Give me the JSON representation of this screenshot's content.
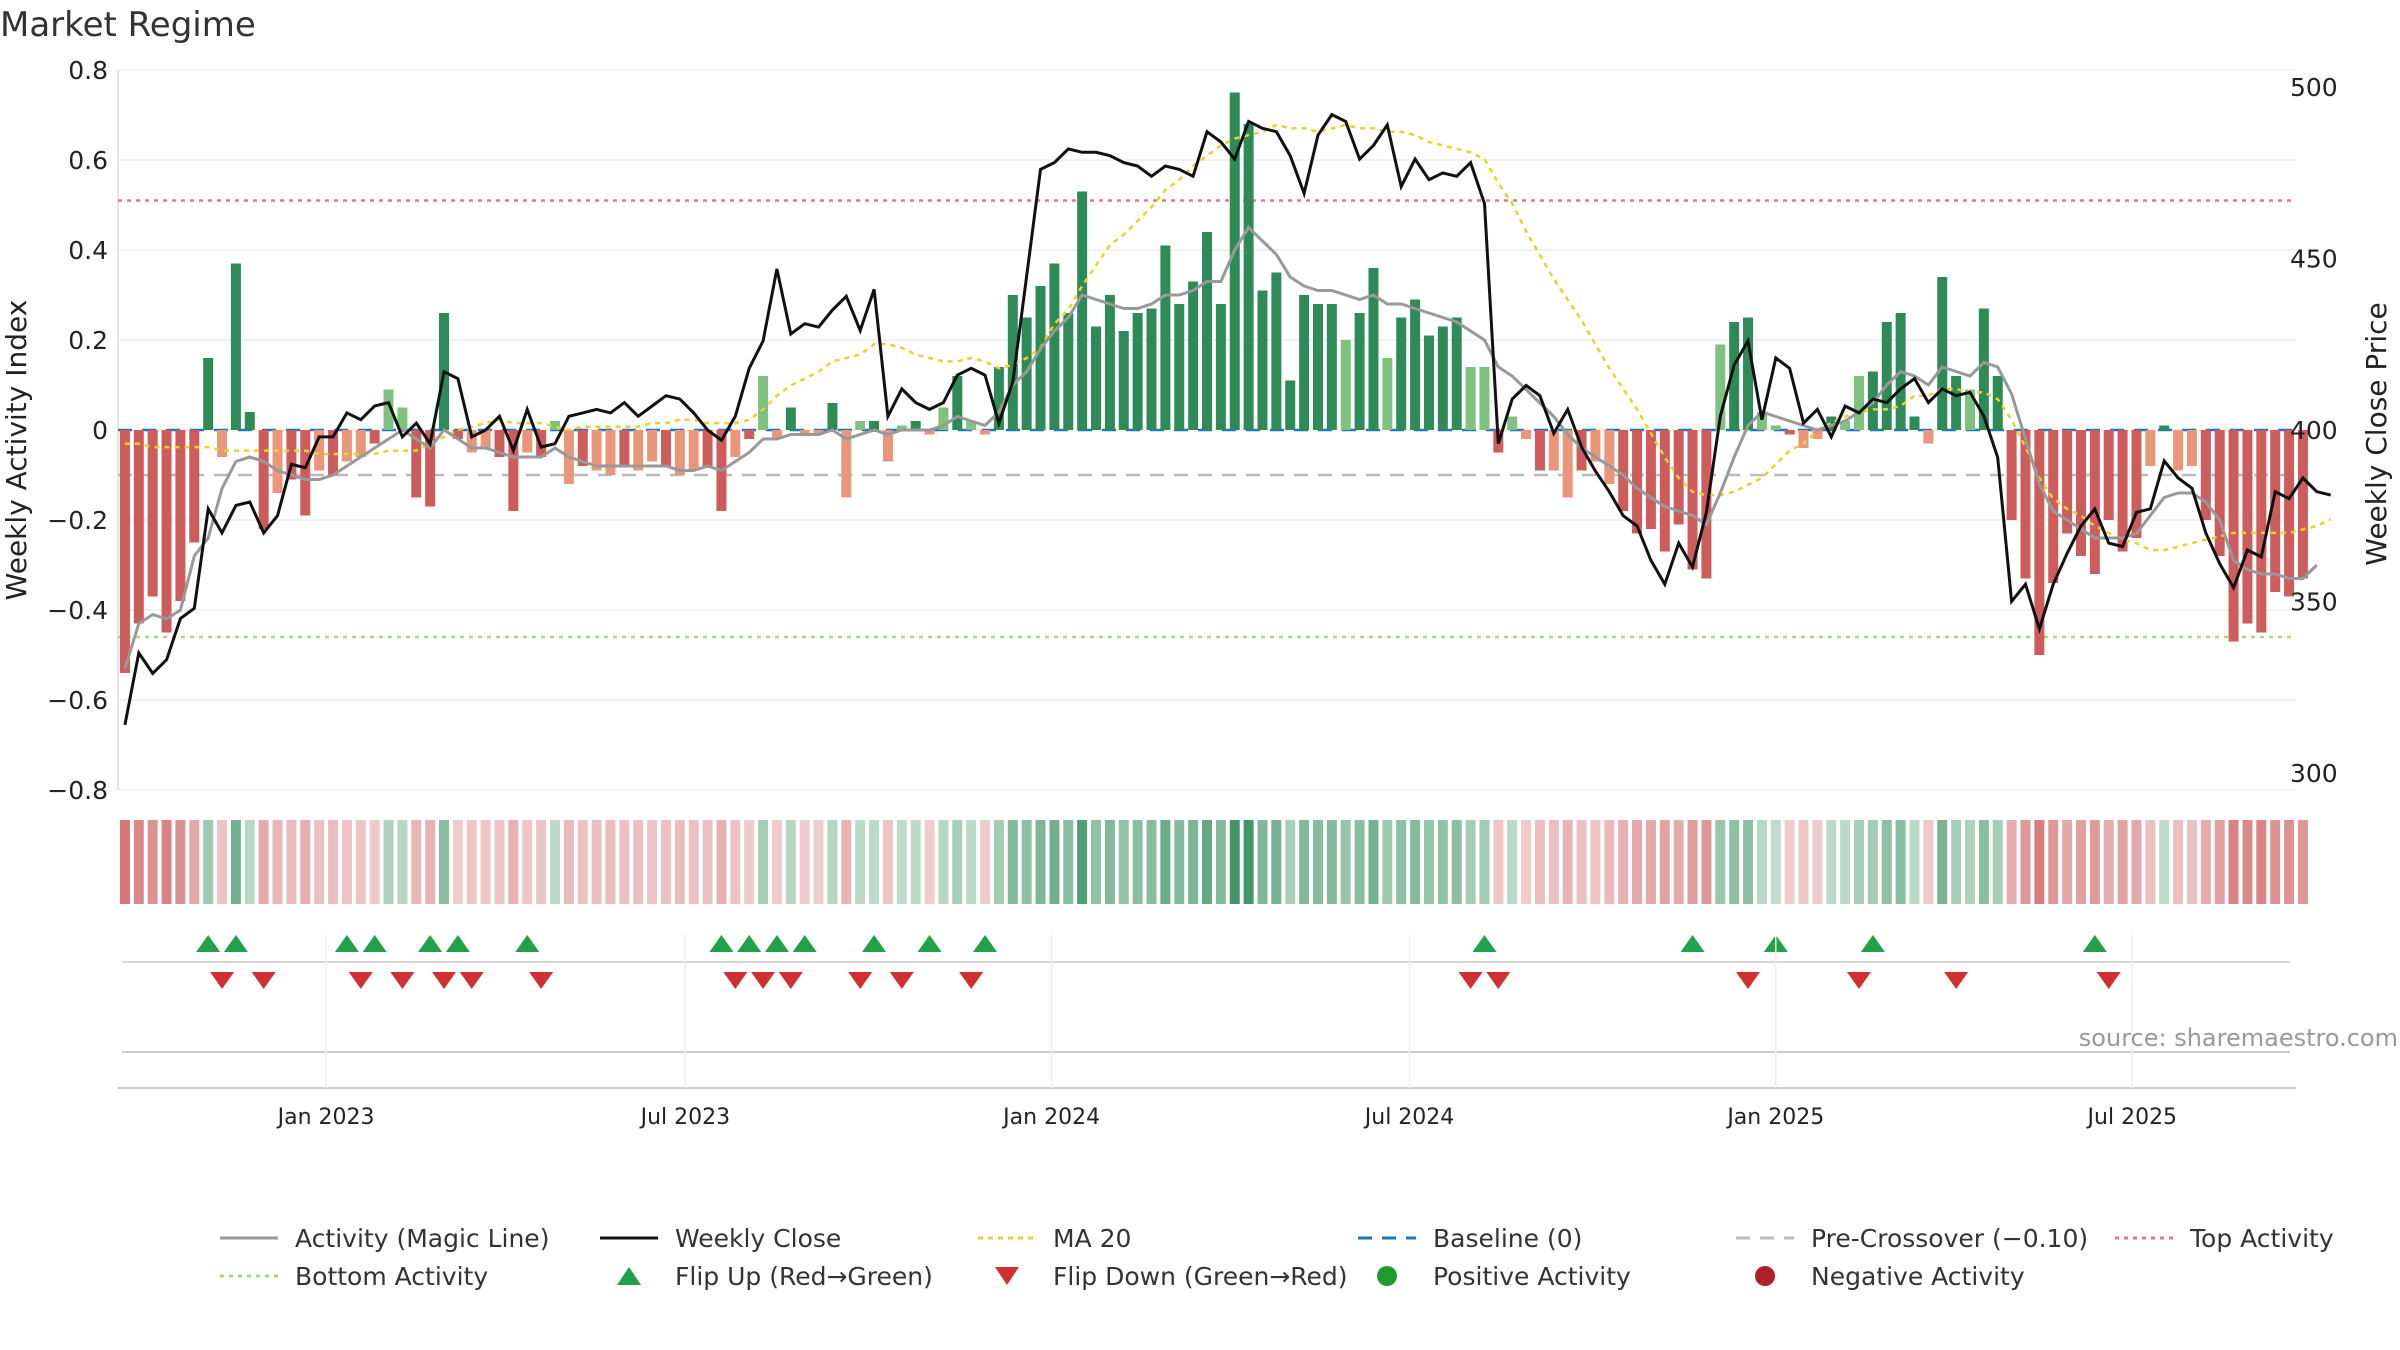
{
  "chart_data": {
    "type": "bar",
    "title": "Market Regime",
    "ylabel_left": "Weekly Activity Index",
    "ylabel_right": "Weekly Close Price",
    "source": "source: sharemaestro.com",
    "left_axis": {
      "range": [
        -0.8,
        0.8
      ],
      "ticks": [
        0.8,
        0.6,
        0.4,
        0.2,
        0,
        -0.2,
        -0.4,
        -0.6,
        -0.8
      ],
      "tick_labels": [
        "0.8",
        "0.6",
        "0.4",
        "0.2",
        "0",
        "−0.2",
        "−0.4",
        "−0.6",
        "−0.8"
      ]
    },
    "right_axis": {
      "range": [
        295,
        505
      ],
      "ticks": [
        500,
        450,
        400,
        350,
        300
      ],
      "tick_labels": [
        "500",
        "450",
        "400",
        "350",
        "300"
      ]
    },
    "x_range_weeks": [
      0,
      156
    ],
    "x_ticks": [
      {
        "label": "Jan 2023",
        "week": 14.5
      },
      {
        "label": "Jul 2023",
        "week": 40.4
      },
      {
        "label": "Jan 2024",
        "week": 66.8
      },
      {
        "label": "Jul 2024",
        "week": 92.6
      },
      {
        "label": "Jan 2025",
        "week": 119.0
      },
      {
        "label": "Jul 2025",
        "week": 144.7
      }
    ],
    "top_activity": 0.51,
    "bottom_activity": -0.46,
    "pre_crossover": -0.1,
    "baseline": 0,
    "activity": [
      -0.54,
      -0.43,
      -0.37,
      -0.45,
      -0.38,
      -0.25,
      0.16,
      -0.06,
      0.37,
      0.04,
      -0.22,
      -0.14,
      -0.11,
      -0.19,
      -0.09,
      -0.1,
      -0.07,
      -0.06,
      -0.03,
      0.09,
      0.05,
      -0.15,
      -0.17,
      0.26,
      -0.02,
      -0.05,
      -0.04,
      -0.06,
      -0.18,
      -0.05,
      -0.06,
      0.02,
      -0.12,
      -0.08,
      -0.09,
      -0.1,
      -0.08,
      -0.09,
      -0.07,
      -0.08,
      -0.1,
      -0.09,
      -0.08,
      -0.18,
      -0.06,
      -0.02,
      0.12,
      -0.02,
      0.05,
      -0.01,
      -0.01,
      0.06,
      -0.15,
      0.02,
      0.02,
      -0.07,
      0.01,
      0.02,
      -0.01,
      0.05,
      0.12,
      0.02,
      -0.01,
      0.14,
      0.3,
      0.25,
      0.32,
      0.37,
      0.26,
      0.53,
      0.23,
      0.3,
      0.22,
      0.26,
      0.27,
      0.41,
      0.28,
      0.33,
      0.44,
      0.28,
      0.75,
      0.68,
      0.31,
      0.35,
      0.11,
      0.3,
      0.28,
      0.28,
      0.2,
      0.26,
      0.36,
      0.16,
      0.25,
      0.29,
      0.21,
      0.23,
      0.25,
      0.14,
      0.14,
      -0.05,
      0.03,
      -0.02,
      -0.09,
      -0.09,
      -0.15,
      -0.09,
      -0.07,
      -0.12,
      -0.18,
      -0.23,
      -0.22,
      -0.27,
      -0.21,
      -0.31,
      -0.33,
      0.19,
      0.24,
      0.25,
      0.04,
      0.01,
      -0.01,
      -0.04,
      -0.02,
      0.03,
      0.02,
      0.12,
      0.13,
      0.24,
      0.26,
      0.03,
      -0.03,
      0.34,
      0.12,
      0.09,
      0.27,
      0.12,
      -0.2,
      -0.33,
      -0.5,
      -0.34,
      -0.23,
      -0.28,
      -0.32,
      -0.2,
      -0.27,
      -0.24,
      -0.08,
      0.01,
      -0.09,
      -0.08,
      -0.2,
      -0.28,
      -0.47,
      -0.43,
      -0.45,
      -0.36,
      -0.37,
      -0.33
    ],
    "activity_magic_line": [
      -0.53,
      -0.43,
      -0.41,
      -0.42,
      -0.4,
      -0.28,
      -0.24,
      -0.13,
      -0.07,
      -0.06,
      -0.07,
      -0.09,
      -0.1,
      -0.11,
      -0.11,
      -0.1,
      -0.08,
      -0.06,
      -0.04,
      -0.02,
      0.0,
      -0.02,
      -0.04,
      0.0,
      -0.02,
      -0.04,
      -0.04,
      -0.05,
      -0.06,
      -0.06,
      -0.06,
      -0.04,
      -0.06,
      -0.07,
      -0.08,
      -0.08,
      -0.08,
      -0.08,
      -0.08,
      -0.08,
      -0.09,
      -0.09,
      -0.08,
      -0.09,
      -0.07,
      -0.05,
      -0.02,
      -0.02,
      -0.01,
      -0.01,
      -0.01,
      0.0,
      -0.02,
      -0.01,
      0.0,
      -0.01,
      0.0,
      0.0,
      0.0,
      0.01,
      0.03,
      0.02,
      0.01,
      0.04,
      0.1,
      0.13,
      0.18,
      0.22,
      0.25,
      0.3,
      0.29,
      0.28,
      0.27,
      0.27,
      0.28,
      0.3,
      0.3,
      0.31,
      0.33,
      0.33,
      0.4,
      0.45,
      0.42,
      0.39,
      0.34,
      0.32,
      0.31,
      0.31,
      0.3,
      0.29,
      0.3,
      0.28,
      0.28,
      0.27,
      0.26,
      0.25,
      0.24,
      0.22,
      0.2,
      0.14,
      0.12,
      0.09,
      0.06,
      0.03,
      -0.01,
      -0.04,
      -0.06,
      -0.08,
      -0.1,
      -0.13,
      -0.15,
      -0.17,
      -0.18,
      -0.19,
      -0.21,
      -0.14,
      -0.06,
      0.01,
      0.04,
      0.03,
      0.02,
      0.01,
      0.0,
      0.01,
      0.02,
      0.04,
      0.06,
      0.1,
      0.13,
      0.12,
      0.1,
      0.14,
      0.13,
      0.12,
      0.15,
      0.14,
      0.08,
      -0.02,
      -0.12,
      -0.18,
      -0.2,
      -0.22,
      -0.24,
      -0.24,
      -0.24,
      -0.23,
      -0.19,
      -0.15,
      -0.14,
      -0.14,
      -0.16,
      -0.2,
      -0.29,
      -0.31,
      -0.32,
      -0.32,
      -0.33,
      -0.33,
      -0.3
    ],
    "weekly_close": [
      314,
      335,
      329,
      333,
      345,
      348,
      377,
      370,
      378,
      379,
      370,
      375,
      390,
      389,
      398,
      398,
      405,
      403,
      407,
      408,
      398,
      402,
      396,
      417,
      415,
      398,
      400,
      404,
      394,
      406,
      395,
      396,
      404,
      405,
      406,
      405,
      408,
      404,
      407,
      410,
      409,
      405,
      400,
      397,
      404,
      418,
      426,
      447,
      428,
      431,
      430,
      435,
      439,
      429,
      441,
      404,
      412,
      408,
      406,
      408,
      416,
      418,
      416,
      402,
      414,
      445,
      476,
      478,
      482,
      481,
      481,
      480,
      478,
      477,
      474,
      477,
      476,
      474,
      487,
      484,
      479,
      490,
      488,
      487,
      480,
      469,
      486,
      492,
      490,
      479,
      483,
      489,
      471,
      479,
      473,
      475,
      474,
      478,
      466,
      396,
      409,
      413,
      410,
      399,
      406,
      395,
      388,
      382,
      375,
      372,
      362,
      355,
      367,
      360,
      376,
      404,
      419,
      426,
      403,
      421,
      418,
      402,
      406,
      398,
      407,
      405,
      409,
      408,
      412,
      415,
      408,
      412,
      410,
      411,
      404,
      392,
      350,
      355,
      342,
      355,
      364,
      372,
      377,
      367,
      366,
      376,
      377,
      391,
      386,
      383,
      370,
      361,
      354,
      365,
      363,
      382,
      380,
      386,
      382,
      381
    ],
    "ma20": [
      396,
      396,
      395,
      395,
      395,
      395,
      395,
      394,
      394,
      394,
      394,
      394,
      394,
      394,
      393,
      393,
      393,
      393,
      393,
      394,
      394,
      394,
      396,
      398,
      400,
      401,
      402,
      403,
      402,
      402,
      402,
      401,
      400,
      401,
      401,
      401,
      401,
      401,
      402,
      402,
      403,
      403,
      402,
      402,
      402,
      403,
      406,
      410,
      413,
      415,
      417,
      420,
      421,
      422,
      425,
      425,
      424,
      422,
      421,
      420,
      420,
      421,
      420,
      418,
      419,
      421,
      424,
      431,
      435,
      442,
      448,
      454,
      457,
      461,
      465,
      470,
      473,
      477,
      480,
      483,
      485,
      486,
      487,
      489,
      488,
      488,
      487,
      488,
      489,
      488,
      488,
      487,
      487,
      486,
      484,
      483,
      482,
      481,
      479,
      472,
      466,
      458,
      451,
      444,
      438,
      432,
      425,
      418,
      412,
      406,
      399,
      392,
      386,
      382,
      381,
      381,
      382,
      384,
      386,
      390,
      394,
      396,
      400,
      402,
      404,
      405,
      406,
      406,
      407,
      410,
      410,
      412,
      412,
      411,
      411,
      409,
      403,
      395,
      386,
      380,
      377,
      375,
      372,
      370,
      368,
      367,
      365,
      365,
      366,
      367,
      368,
      369,
      370,
      370,
      370,
      370,
      370,
      371,
      372,
      374
    ],
    "flip_up_weeks": [
      6,
      8,
      16,
      18,
      22,
      24,
      29,
      43,
      45,
      47,
      49,
      54,
      58,
      62,
      98,
      113,
      119,
      126,
      142
    ],
    "flip_down_weeks": [
      7,
      10,
      17,
      20,
      23,
      25,
      30,
      44,
      46,
      48,
      53,
      56,
      61,
      97,
      99,
      117,
      125,
      132,
      143
    ],
    "legend": [
      "Activity (Magic Line)",
      "Weekly Close",
      "MA 20",
      "Baseline (0)",
      "Pre-Crossover (−0.10)",
      "Top Activity",
      "Bottom Activity",
      "Flip Up (Red→Green)",
      "Flip Down (Green→Red)",
      "Positive Activity",
      "Negative Activity"
    ],
    "legend_placement": "bottom",
    "grid": true
  },
  "colors": {
    "pos_strong": "#2e8b57",
    "pos_light": "#7fc17f",
    "neg_strong": "#cd5c5c",
    "neg_light": "#e9967a",
    "magic_line": "#999999",
    "close": "#111111",
    "ma20": "#e6d32b",
    "baseline": "#1f77b4",
    "precross": "#bbbbbb",
    "top": "#e07a8a",
    "bottom": "#a8d87a",
    "flip_up": "#22a04a",
    "flip_down": "#d03030",
    "pos_dot": "#1e9a2e",
    "neg_dot": "#b02028"
  }
}
